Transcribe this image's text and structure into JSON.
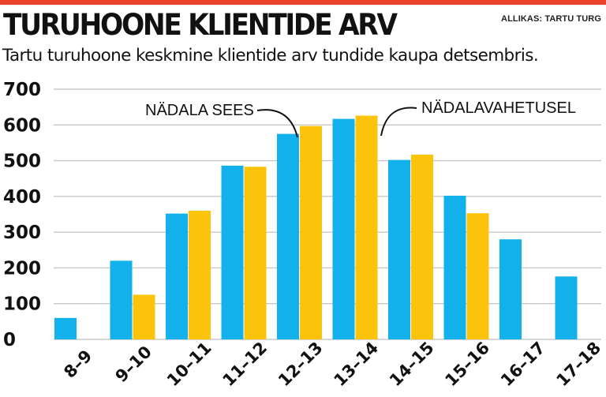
{
  "header": {
    "title": "TURUHOONE KLIENTIDE ARV",
    "source": "ALLIKAS: TARTU TURG",
    "subtitle": "Tartu turuhoone keskmine klientide arv tundide kaupa detsembris."
  },
  "colors": {
    "accent_bar": "#e8412c",
    "weekday": "#13b1eb",
    "weekend": "#fcc30b",
    "grid": "#c8c8c8",
    "text": "#111111"
  },
  "chart_data": {
    "type": "bar",
    "categories": [
      "8–9",
      "9–10",
      "10–11",
      "11–12",
      "12–13",
      "13–14",
      "14–15",
      "15–16",
      "16–17",
      "17–18"
    ],
    "series": [
      {
        "name": "NÄDALA SEES",
        "values": [
          60,
          220,
          352,
          486,
          575,
          617,
          502,
          402,
          280,
          176
        ]
      },
      {
        "name": "NÄDALAVAHETUSEL",
        "values": [
          null,
          125,
          360,
          483,
          597,
          626,
          517,
          353,
          null,
          null
        ]
      }
    ],
    "yticks": [
      0,
      100,
      200,
      300,
      400,
      500,
      600,
      700
    ],
    "ylim": [
      0,
      700
    ],
    "grid": true,
    "legend": "annotations"
  }
}
